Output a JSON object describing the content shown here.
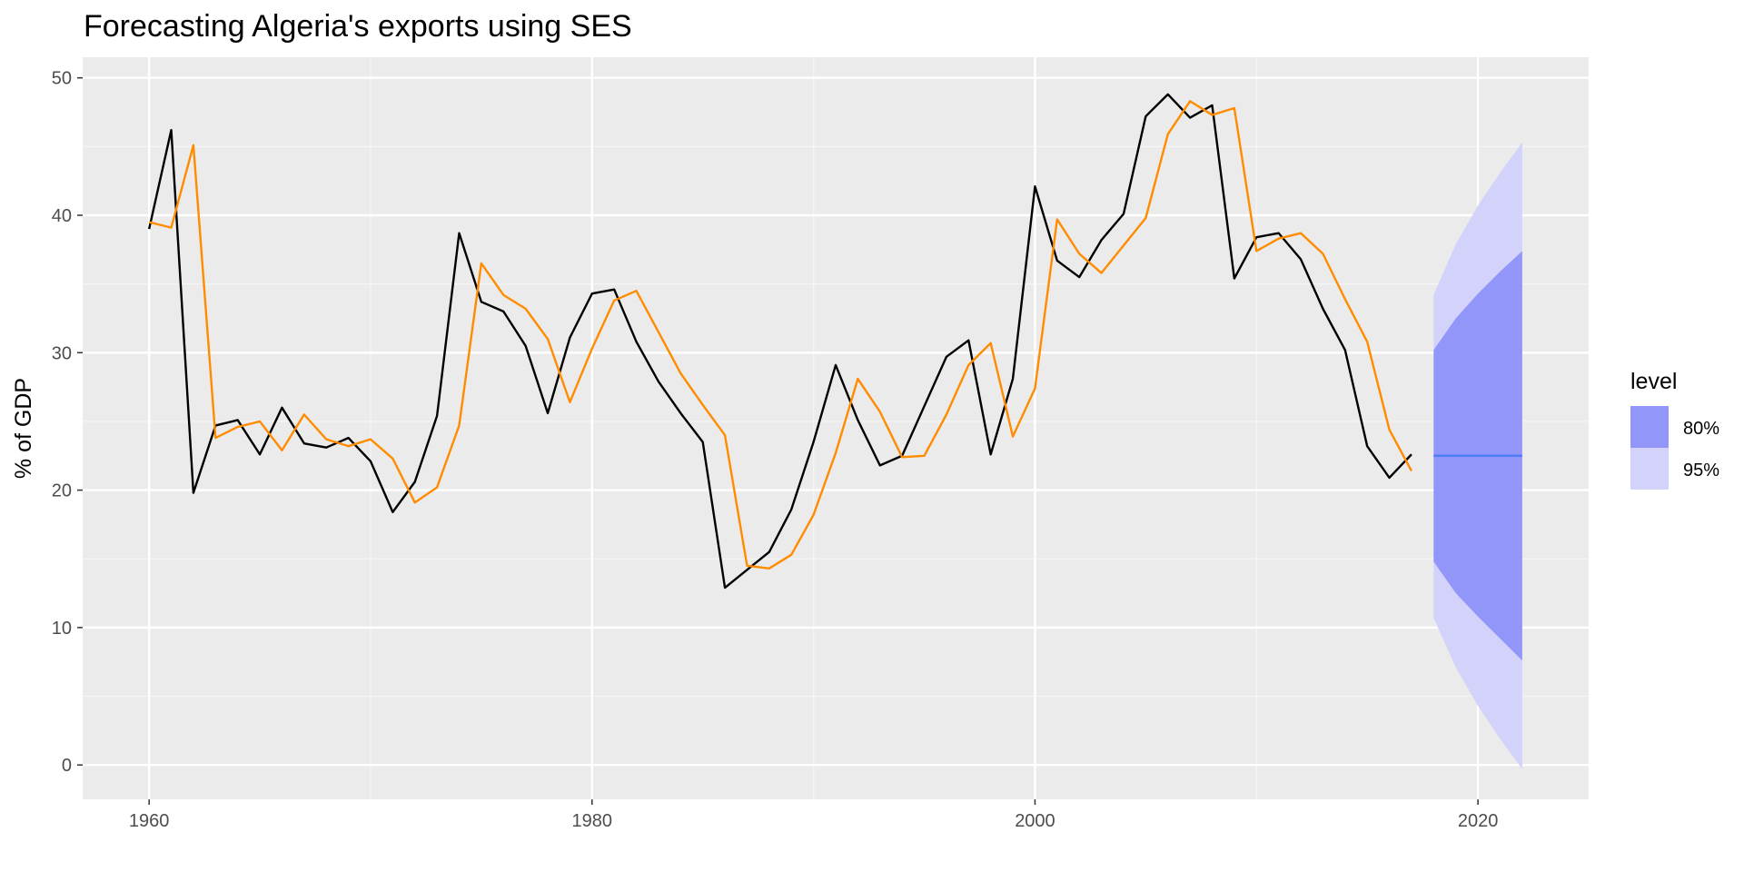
{
  "chart_data": {
    "type": "line",
    "title": "Forecasting Algeria's exports using SES",
    "xlabel": "",
    "ylabel": "% of GDP",
    "xlim": [
      1957,
      2025
    ],
    "ylim": [
      -2.5,
      51.5
    ],
    "x_ticks": [
      1960,
      1980,
      2000,
      2020
    ],
    "y_ticks": [
      0,
      10,
      20,
      30,
      40,
      50
    ],
    "grid": true,
    "legend": {
      "title": "level",
      "placement": "right",
      "entries": [
        {
          "label": "80%",
          "color": "#9296f9"
        },
        {
          "label": "95%",
          "color": "#d2d2fb"
        }
      ]
    },
    "colors": {
      "panel": "#ebebeb",
      "grid_major": "#ffffff",
      "grid_minor": "#f5f5f5",
      "actual": "#000000",
      "fitted": "#ff8c00",
      "forecast": "#4f7cf7",
      "band80": "#9296f9",
      "band95": "#d2d2fb"
    },
    "actual": {
      "x": [
        1960,
        1961,
        1962,
        1963,
        1964,
        1965,
        1966,
        1967,
        1968,
        1969,
        1970,
        1971,
        1972,
        1973,
        1974,
        1975,
        1976,
        1977,
        1978,
        1979,
        1980,
        1981,
        1982,
        1983,
        1984,
        1985,
        1986,
        1987,
        1988,
        1989,
        1990,
        1991,
        1992,
        1993,
        1994,
        1995,
        1996,
        1997,
        1998,
        1999,
        2000,
        2001,
        2002,
        2003,
        2004,
        2005,
        2006,
        2007,
        2008,
        2009,
        2010,
        2011,
        2012,
        2013,
        2014,
        2015,
        2016,
        2017
      ],
      "y": [
        39.0,
        46.2,
        19.8,
        24.7,
        25.1,
        22.6,
        26.0,
        23.4,
        23.1,
        23.8,
        22.1,
        18.4,
        20.6,
        25.4,
        38.7,
        33.7,
        33.0,
        30.5,
        25.6,
        31.1,
        34.3,
        34.6,
        30.8,
        27.9,
        25.6,
        23.5,
        12.9,
        14.2,
        15.5,
        18.6,
        23.5,
        29.1,
        25.1,
        21.8,
        22.5,
        26.1,
        29.7,
        30.9,
        22.6,
        28.1,
        42.1,
        36.7,
        35.5,
        38.2,
        40.1,
        47.2,
        48.8,
        47.1,
        48.0,
        35.4,
        38.4,
        38.7,
        36.8,
        33.2,
        30.2,
        23.2,
        20.9,
        22.6
      ]
    },
    "fitted": {
      "x": [
        1960,
        1961,
        1962,
        1963,
        1964,
        1965,
        1966,
        1967,
        1968,
        1969,
        1970,
        1971,
        1972,
        1973,
        1974,
        1975,
        1976,
        1977,
        1978,
        1979,
        1980,
        1981,
        1982,
        1983,
        1984,
        1985,
        1986,
        1987,
        1988,
        1989,
        1990,
        1991,
        1992,
        1993,
        1994,
        1995,
        1996,
        1997,
        1998,
        1999,
        2000,
        2001,
        2002,
        2003,
        2004,
        2005,
        2006,
        2007,
        2008,
        2009,
        2010,
        2011,
        2012,
        2013,
        2014,
        2015,
        2016,
        2017
      ],
      "y": [
        39.5,
        39.1,
        45.1,
        23.8,
        24.6,
        25.0,
        22.9,
        25.5,
        23.7,
        23.2,
        23.7,
        22.3,
        19.1,
        20.2,
        24.7,
        36.5,
        34.2,
        33.2,
        31.0,
        26.4,
        30.3,
        33.8,
        34.5,
        31.5,
        28.5,
        26.2,
        24.0,
        14.5,
        14.3,
        15.3,
        18.2,
        22.7,
        28.1,
        25.7,
        22.4,
        22.5,
        25.5,
        29.1,
        30.7,
        23.9,
        27.4,
        39.7,
        37.2,
        35.8,
        37.8,
        39.8,
        45.9,
        48.3,
        47.3,
        47.8,
        37.4,
        38.3,
        38.7,
        37.2,
        33.9,
        30.8,
        24.4,
        21.4
      ]
    },
    "forecast": {
      "x": [
        2018,
        2019,
        2020,
        2021,
        2022
      ],
      "mean": [
        22.5,
        22.5,
        22.5,
        22.5,
        22.5
      ],
      "lo80": [
        14.8,
        12.5,
        10.8,
        9.2,
        7.6
      ],
      "hi80": [
        30.2,
        32.5,
        34.3,
        35.9,
        37.4
      ],
      "lo95": [
        10.7,
        7.1,
        4.3,
        1.9,
        -0.3
      ],
      "hi95": [
        34.2,
        37.9,
        40.7,
        43.1,
        45.3
      ]
    }
  }
}
